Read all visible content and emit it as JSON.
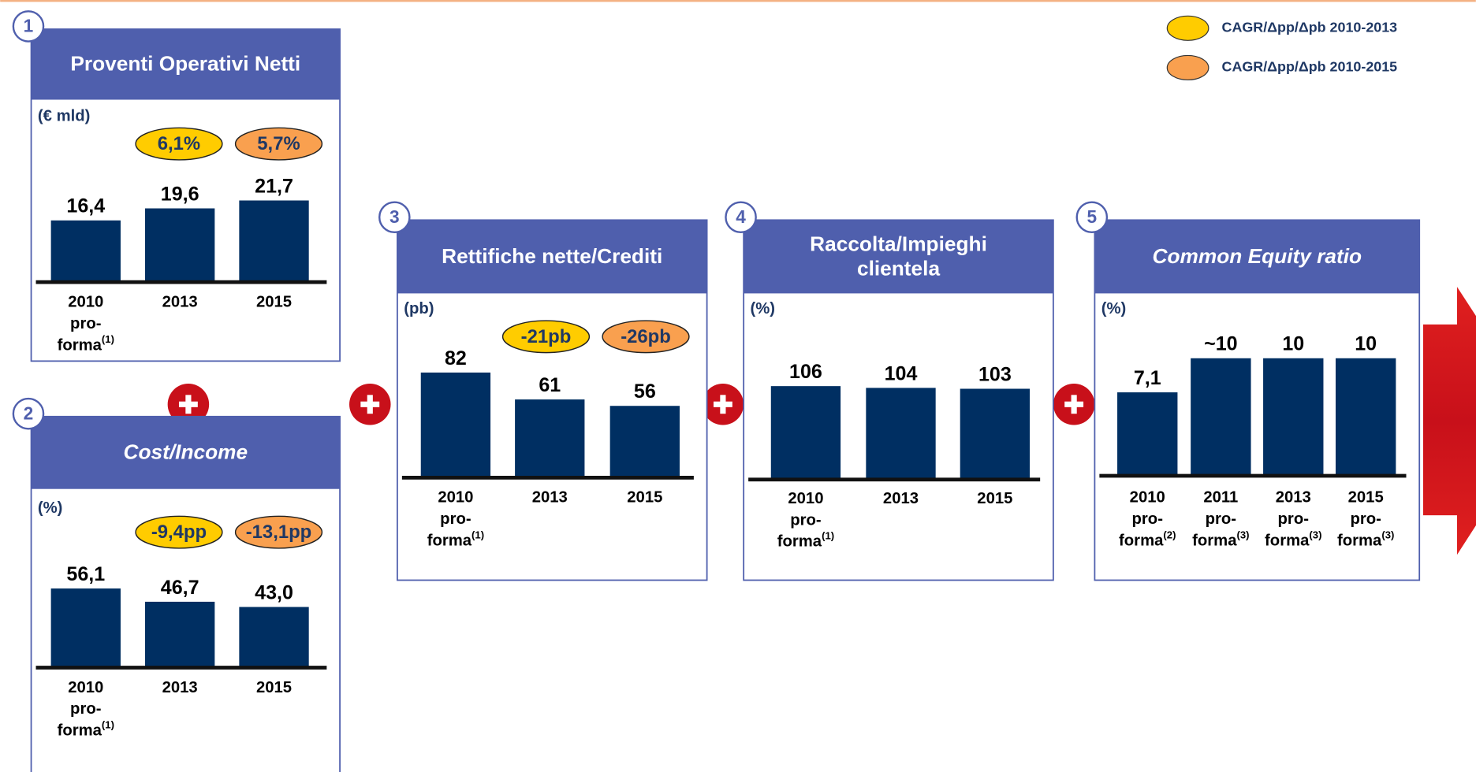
{
  "legend": [
    {
      "label": "CAGR/Δpp/Δpb 2010-2013",
      "color": "#ffcc00"
    },
    {
      "label": "CAGR/Δpp/Δpb 2010-2015",
      "color": "#f9a04f"
    }
  ],
  "chart_data": [
    {
      "type": "bar",
      "number": "1",
      "title": "Proventi Operativi Netti",
      "title_italic": false,
      "unit": "(€ mld)",
      "badges": [
        {
          "label": "6,1%",
          "color": "#ffcc00"
        },
        {
          "label": "5,7%",
          "color": "#f9a04f"
        }
      ],
      "categories": [
        [
          "2010",
          "pro-",
          "forma"
        ],
        [
          "2013"
        ],
        [
          "2015"
        ]
      ],
      "category_notes": [
        "(1)",
        null,
        null
      ],
      "values": [
        16.4,
        19.6,
        21.7
      ],
      "value_labels": [
        "16,4",
        "19,6",
        "21,7"
      ],
      "color": "#002f62",
      "ylim": [
        0,
        30
      ]
    },
    {
      "type": "bar",
      "number": "2",
      "title": "Cost/Income",
      "title_italic": true,
      "unit": "(%)",
      "badges": [
        {
          "label": "-9,4pp",
          "color": "#ffcc00"
        },
        {
          "label": "-13,1pp",
          "color": "#f9a04f"
        }
      ],
      "categories": [
        [
          "2010",
          "pro-",
          "forma"
        ],
        [
          "2013"
        ],
        [
          "2015"
        ]
      ],
      "category_notes": [
        "(1)",
        null,
        null
      ],
      "values": [
        56.1,
        46.7,
        43.0
      ],
      "value_labels": [
        "56,1",
        "46,7",
        "43,0"
      ],
      "color": "#002f62",
      "ylim": [
        0,
        80
      ]
    },
    {
      "type": "bar",
      "number": "3",
      "title": "Rettifiche nette/Crediti",
      "title_italic": false,
      "unit": "(pb)",
      "badges": [
        {
          "label": "-21pb",
          "color": "#ffcc00"
        },
        {
          "label": "-26pb",
          "color": "#f9a04f"
        }
      ],
      "categories": [
        [
          "2010",
          "pro-",
          "forma"
        ],
        [
          "2013"
        ],
        [
          "2015"
        ]
      ],
      "category_notes": [
        "(1)",
        null,
        null
      ],
      "values": [
        82,
        61,
        56
      ],
      "color": "#002f62",
      "ylim": [
        0,
        110
      ]
    },
    {
      "type": "bar",
      "number": "4",
      "title": "Raccolta/Impieghi clientela",
      "title_italic": false,
      "unit": "(%)",
      "categories": [
        [
          "2010",
          "pro-",
          "forma"
        ],
        [
          "2013"
        ],
        [
          "2015"
        ]
      ],
      "category_notes": [
        "(1)",
        null,
        null
      ],
      "values": [
        106,
        104,
        103
      ],
      "color": "#002f62",
      "ylim": [
        0,
        160
      ]
    },
    {
      "type": "bar",
      "number": "5",
      "title": "Common Equity ratio",
      "title_italic": true,
      "unit": "(%)",
      "categories": [
        [
          "2010",
          "pro-",
          "forma"
        ],
        [
          "2011",
          "pro-",
          "forma"
        ],
        [
          "2013",
          "pro-",
          "forma"
        ],
        [
          "2015",
          "pro-",
          "forma"
        ]
      ],
      "category_notes": [
        "(2)",
        "(3)",
        "(3)",
        "(3)"
      ],
      "values": [
        7.1,
        10,
        10,
        10
      ],
      "value_labels": [
        "7,1",
        "~10",
        "10",
        "10"
      ],
      "color": "#002f62",
      "ylim": [
        0,
        12
      ]
    }
  ]
}
